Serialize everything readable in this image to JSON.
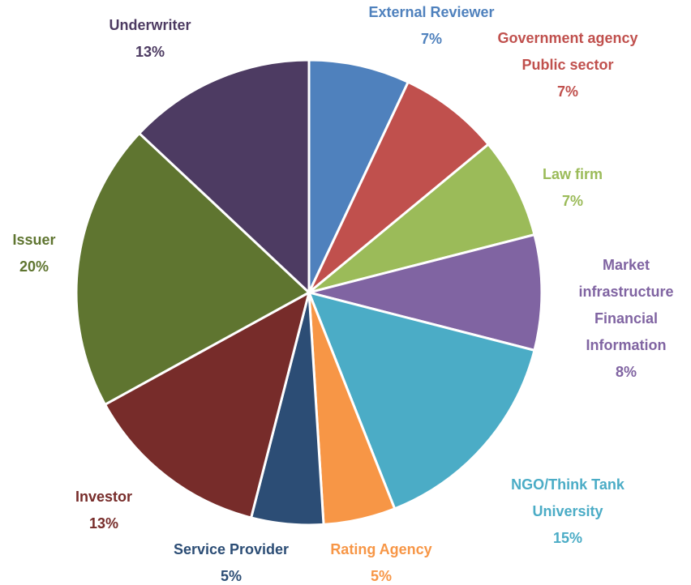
{
  "chart_data": {
    "type": "pie",
    "categories": [
      [
        "External Reviewer"
      ],
      [
        "Government agency",
        "Public sector"
      ],
      [
        "Law firm"
      ],
      [
        "Market",
        "infrastructure",
        "Financial",
        "Information"
      ],
      [
        "NGO/Think Tank",
        "University"
      ],
      [
        "Rating Agency"
      ],
      [
        "Service Provider"
      ],
      [
        "Investor"
      ],
      [
        "Issuer"
      ],
      [
        "Underwriter"
      ]
    ],
    "values": [
      7,
      7,
      7,
      8,
      15,
      5,
      5,
      13,
      20,
      13
    ],
    "value_labels": [
      "7%",
      "7%",
      "7%",
      "8%",
      "15%",
      "5%",
      "5%",
      "13%",
      "20%",
      "13%"
    ],
    "colors": [
      "#4f81bd",
      "#c0504d",
      "#9bbb59",
      "#8064a2",
      "#4bacc6",
      "#f79646",
      "#2c4d75",
      "#772c2a",
      "#5f7530",
      "#4d3b62"
    ]
  }
}
